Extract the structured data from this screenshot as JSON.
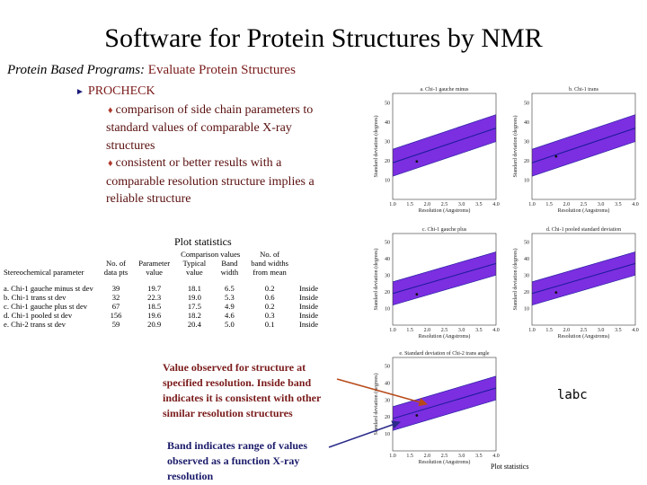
{
  "slide": {
    "title": "Software for Protein Structures by NMR",
    "subtitle_prefix": "Protein Based Programs:",
    "subtitle_rest": "Evaluate Protein Structures",
    "program": "PROCHECK",
    "bullet_lines_1": [
      "comparison of side chain parameters to",
      "standard values of comparable X-ray",
      "structures"
    ],
    "bullet_lines_2": [
      "consistent or better results with a",
      "comparable resolution structure implies a",
      "reliable structure"
    ]
  },
  "plot_statistics": {
    "title": "Plot statistics",
    "header_row1": [
      "",
      "",
      "",
      "Comparison values",
      "",
      "No. of"
    ],
    "header_row2": [
      "",
      "No. of",
      "Parameter",
      "Typical",
      "Band",
      "band widths"
    ],
    "header_row3": [
      "Stereochemical parameter",
      "data pts",
      "value",
      "value",
      "width",
      "from mean"
    ],
    "rows": [
      [
        "a. Chi-1 gauche minus st dev",
        "39",
        "19.7",
        "18.1",
        "6.5",
        "0.2",
        "Inside"
      ],
      [
        "b. Chi-1 trans st dev",
        "32",
        "22.3",
        "19.0",
        "5.3",
        "0.6",
        "Inside"
      ],
      [
        "c. Chi-1 gauche plus st dev",
        "67",
        "18.5",
        "17.5",
        "4.9",
        "0.2",
        "Inside"
      ],
      [
        "d. Chi-1 pooled st dev",
        "156",
        "19.6",
        "18.2",
        "4.6",
        "0.3",
        "Inside"
      ],
      [
        "e. Chi-2 trans st dev",
        "59",
        "20.9",
        "20.4",
        "5.0",
        "0.1",
        "Inside"
      ]
    ]
  },
  "callouts": {
    "inside_band": [
      "Value observed for structure at",
      "specified resolution.  Inside band",
      "indicates it is consistent with other",
      "similar resolution structures"
    ],
    "band_range": [
      "Band indicates range of values",
      "observed as a function X-ray",
      "resolution"
    ]
  },
  "labc": "labc",
  "bottom_label": "Plot statistics",
  "colors": {
    "band": "#7b2fe0",
    "band_line": "#1a1a9a",
    "arrow1": "#b84a1a",
    "arrow2": "#2a2a8a"
  },
  "plots": [
    {
      "title": "a. Chi-1 gauche minus",
      "ylabel": "Standard deviation (degrees)",
      "xlabel": "Resolution (Angstroms)"
    },
    {
      "title": "b. Chi-1 trans",
      "ylabel": "Standard deviation (degrees)",
      "xlabel": "Resolution (Angstroms)"
    },
    {
      "title": "c. Chi-1 gauche plus",
      "ylabel": "Standard deviation (degrees)",
      "xlabel": "Resolution (Angstroms)"
    },
    {
      "title": "d. Chi-1 pooled standard deviation",
      "ylabel": "Standard deviation (degrees)",
      "xlabel": "Resolution (Angstroms)"
    },
    {
      "title": "e. Standard deviation of Chi-2 trans angle",
      "ylabel": "Standard deviation (degrees)",
      "xlabel": "Resolution (Angstroms)"
    }
  ],
  "axis": {
    "y_ticks": [
      "10",
      "20",
      "30",
      "40",
      "50"
    ],
    "x_ticks": [
      "1.0",
      "1.5",
      "2.0",
      "2.5",
      "3.0",
      "3.5",
      "4.0"
    ]
  },
  "points": [
    {
      "resolution": 1.7,
      "value": 19.7
    },
    {
      "resolution": 1.7,
      "value": 22.3
    },
    {
      "resolution": 1.7,
      "value": 18.5
    },
    {
      "resolution": 1.7,
      "value": 19.6
    },
    {
      "resolution": 1.7,
      "value": 20.9
    }
  ]
}
